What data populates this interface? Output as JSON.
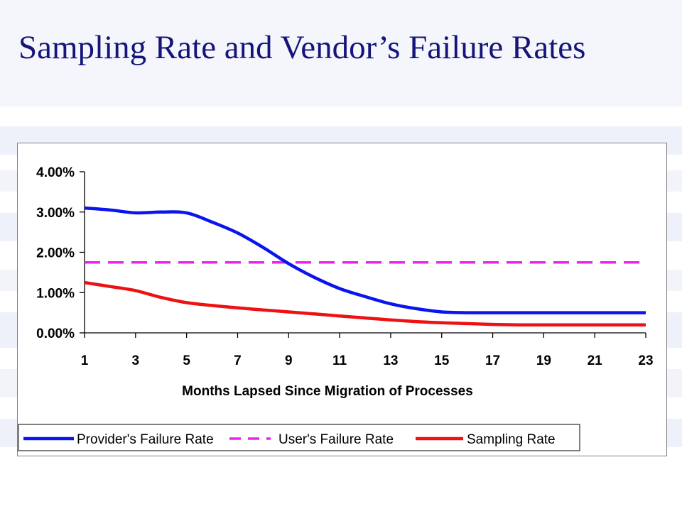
{
  "slide": {
    "title": "Sampling Rate and Vendor’s Failure Rates"
  },
  "colors": {
    "title": "#14147a",
    "provider": "#0a14ee",
    "user": "#ee22ee",
    "sampling": "#ee1111",
    "background_deco": "#eef1f9"
  },
  "chart_data": {
    "type": "line",
    "title": "",
    "xlabel": "Months Lapsed Since Migration of Processes",
    "ylabel": "",
    "xlim": [
      1,
      23
    ],
    "ylim": [
      0,
      0.04
    ],
    "x_ticks": [
      1,
      3,
      5,
      7,
      9,
      11,
      13,
      15,
      17,
      19,
      21,
      23
    ],
    "y_ticks": [
      {
        "value": 0.0,
        "label": "0.00%"
      },
      {
        "value": 0.01,
        "label": "1.00%"
      },
      {
        "value": 0.02,
        "label": "2.00%"
      },
      {
        "value": 0.03,
        "label": "3.00%"
      },
      {
        "value": 0.04,
        "label": "4.00%"
      }
    ],
    "grid": false,
    "legend_position": "bottom-left",
    "x": [
      1,
      2,
      3,
      4,
      5,
      6,
      7,
      8,
      9,
      10,
      11,
      12,
      13,
      14,
      15,
      16,
      17,
      18,
      19,
      20,
      21,
      22,
      23
    ],
    "series": [
      {
        "name": "Provider's Failure Rate",
        "style": "solid",
        "color": "#0a14ee",
        "values": [
          0.031,
          0.0305,
          0.0298,
          0.03,
          0.0298,
          0.0275,
          0.0248,
          0.0212,
          0.0172,
          0.0138,
          0.011,
          0.009,
          0.0072,
          0.006,
          0.0052,
          0.005,
          0.005,
          0.005,
          0.005,
          0.005,
          0.005,
          0.005,
          0.005
        ]
      },
      {
        "name": "User's Failure Rate",
        "style": "dashed",
        "color": "#ee22ee",
        "values": [
          0.0175,
          0.0175,
          0.0175,
          0.0175,
          0.0175,
          0.0175,
          0.0175,
          0.0175,
          0.0175,
          0.0175,
          0.0175,
          0.0175,
          0.0175,
          0.0175,
          0.0175,
          0.0175,
          0.0175,
          0.0175,
          0.0175,
          0.0175,
          0.0175,
          0.0175,
          0.0175
        ]
      },
      {
        "name": "Sampling Rate",
        "style": "solid",
        "color": "#ee1111",
        "values": [
          0.0125,
          0.0115,
          0.0105,
          0.0088,
          0.0075,
          0.0068,
          0.0062,
          0.0057,
          0.0052,
          0.0047,
          0.0042,
          0.0037,
          0.0032,
          0.0028,
          0.0025,
          0.0023,
          0.0021,
          0.002,
          0.002,
          0.002,
          0.002,
          0.002,
          0.002
        ]
      }
    ]
  }
}
